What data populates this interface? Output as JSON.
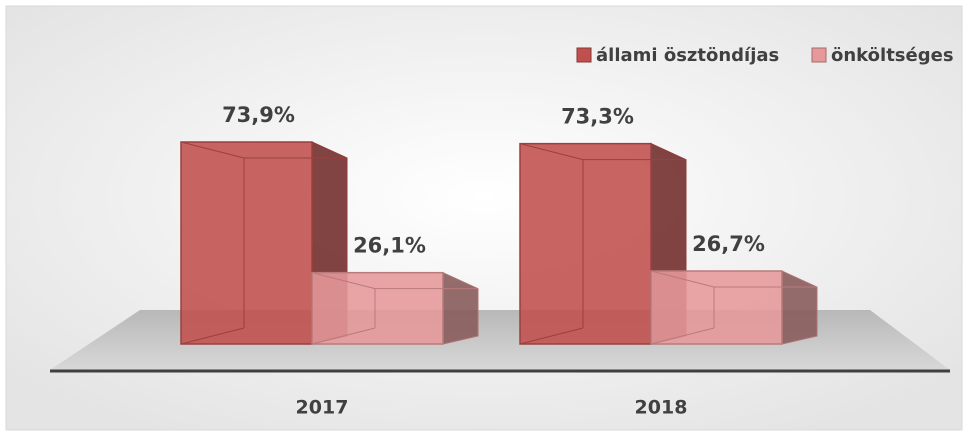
{
  "chart_data": {
    "type": "bar3d",
    "categories": [
      "2017",
      "2018"
    ],
    "series": [
      {
        "name": "állami ösztöndíjas",
        "color": "#c0504d",
        "values": [
          73.9,
          73.3
        ],
        "value_labels": [
          "73,9%",
          "73,3%"
        ]
      },
      {
        "name": "önköltséges",
        "color": "#e6999a",
        "values": [
          26.1,
          26.7
        ],
        "value_labels": [
          "26,1%",
          "26,7%"
        ]
      }
    ],
    "legend": "top-right"
  }
}
